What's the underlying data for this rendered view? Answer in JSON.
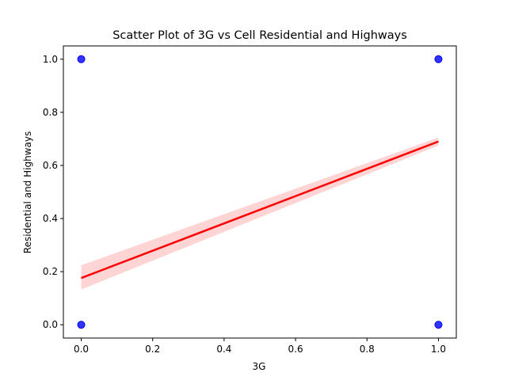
{
  "chart_data": {
    "type": "scatter",
    "title": "Scatter Plot of 3G vs Cell Residential and Highways",
    "xlabel": "3G",
    "ylabel": "Residential and Highways",
    "xlim": [
      -0.05,
      1.05
    ],
    "ylim": [
      -0.05,
      1.05
    ],
    "xticks": [
      0.0,
      0.2,
      0.4,
      0.6,
      0.8,
      1.0
    ],
    "xtick_labels": [
      "0.0",
      "0.2",
      "0.4",
      "0.6",
      "0.8",
      "1.0"
    ],
    "yticks": [
      0.0,
      0.2,
      0.4,
      0.6,
      0.8,
      1.0
    ],
    "ytick_labels": [
      "0.0",
      "0.2",
      "0.4",
      "0.6",
      "0.8",
      "1.0"
    ],
    "grid": false,
    "points": [
      {
        "x": 0.0,
        "y": 1.0
      },
      {
        "x": 0.0,
        "y": 0.0
      },
      {
        "x": 1.0,
        "y": 1.0
      },
      {
        "x": 1.0,
        "y": 0.0
      }
    ],
    "regression": {
      "x": [
        0.0,
        1.0
      ],
      "y": [
        0.176,
        0.69
      ],
      "ci_lower": [
        0.133,
        0.675
      ],
      "ci_upper": [
        0.224,
        0.705
      ]
    },
    "colors": {
      "points": "#0000ff",
      "line": "#ff0000",
      "band": "#ffcccc"
    }
  }
}
